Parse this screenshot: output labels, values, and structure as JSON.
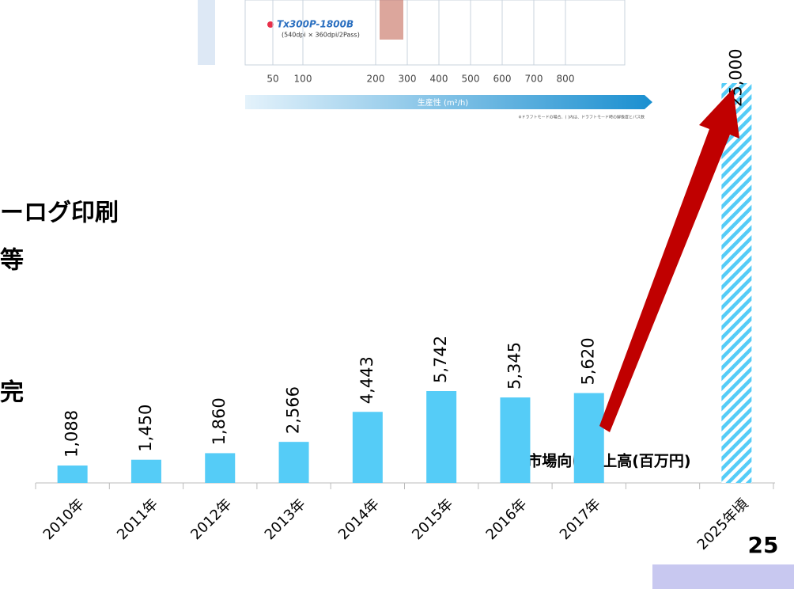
{
  "chart_data": {
    "type": "bar",
    "categories": [
      "2010年",
      "2011年",
      "2012年",
      "2013年",
      "2014年",
      "2015年",
      "2016年",
      "2017年",
      null,
      "2025年頃"
    ],
    "values": [
      1088,
      1450,
      1860,
      2566,
      4443,
      5742,
      5345,
      5620,
      null,
      25000
    ],
    "value_labels": [
      "1,088",
      "1,450",
      "1,860",
      "2,566",
      "4,443",
      "5,742",
      "5,345",
      "5,620",
      null,
      "25,000"
    ],
    "color": "#55ccf7",
    "projected_index": 9,
    "ylim": [
      0,
      25000
    ],
    "series_label": "TA市場向け売上高(百万円)"
  },
  "inset": {
    "product": "Tx300P-1800B",
    "spec": "(540dpi × 360dpi/2Pass)",
    "xticks": [
      50,
      100,
      200,
      300,
      400,
      500,
      600,
      700,
      800
    ],
    "axis_label": "生産性 (m²/h)",
    "note": "※ドラフトモードの場合、( )内は、ドラフトモード時の解像度とパス数"
  },
  "body": {
    "lines": [
      "ーログ印刷",
      "等",
      "完"
    ]
  },
  "page_number": "25"
}
